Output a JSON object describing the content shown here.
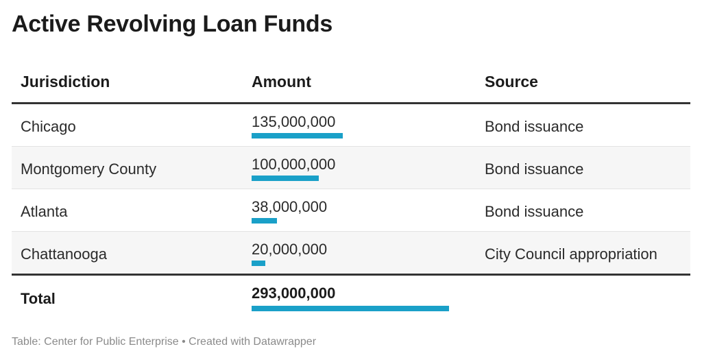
{
  "title": "Active Revolving Loan Funds",
  "headers": [
    "Jurisdiction",
    "Amount",
    "Source"
  ],
  "rows": [
    {
      "jurisdiction": "Chicago",
      "amount": "135,000,000",
      "source": "Bond issuance"
    },
    {
      "jurisdiction": "Montgomery County",
      "amount": "100,000,000",
      "source": "Bond issuance"
    },
    {
      "jurisdiction": "Atlanta",
      "amount": "38,000,000",
      "source": "Bond issuance"
    },
    {
      "jurisdiction": "Chattanooga",
      "amount": "20,000,000",
      "source": "City Council appropriation"
    }
  ],
  "total": {
    "label": "Total",
    "amount": "293,000,000"
  },
  "footer": "Table: Center for Public Enterprise • Created with Datawrapper",
  "colors": {
    "bar": "#1aa0c8"
  },
  "chart_data": {
    "type": "table",
    "title": "Active Revolving Loan Funds",
    "columns": [
      "Jurisdiction",
      "Amount",
      "Source"
    ],
    "categories": [
      "Chicago",
      "Montgomery County",
      "Atlanta",
      "Chattanooga"
    ],
    "values": [
      135000000,
      100000000,
      38000000,
      20000000
    ],
    "sources": [
      "Bond issuance",
      "Bond issuance",
      "Bond issuance",
      "City Council appropriation"
    ],
    "total": 293000000
  }
}
